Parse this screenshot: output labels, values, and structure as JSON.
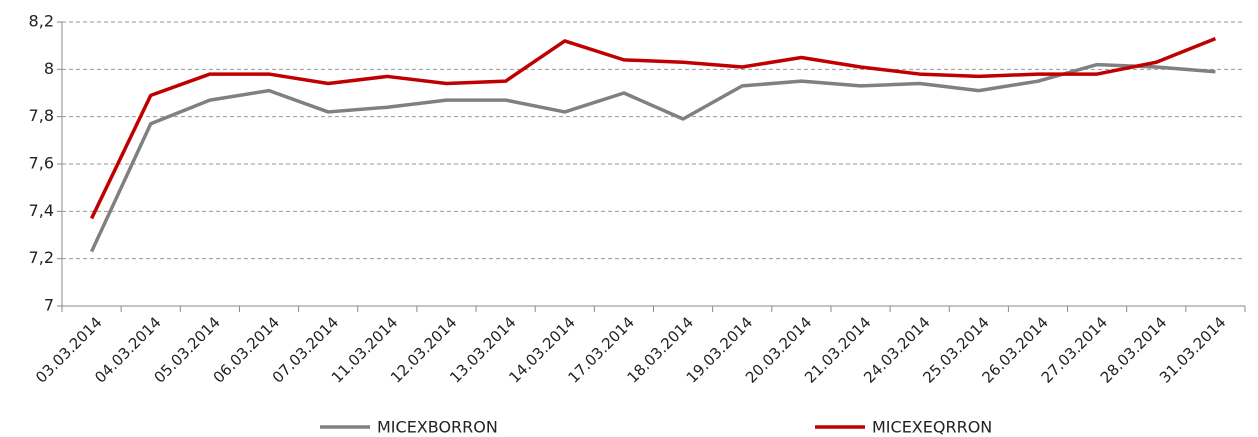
{
  "chart_data": {
    "type": "line",
    "categories": [
      "03.03.2014",
      "04.03.2014",
      "05.03.2014",
      "06.03.2014",
      "07.03.2014",
      "11.03.2014",
      "12.03.2014",
      "13.03.2014",
      "14.03.2014",
      "17.03.2014",
      "18.03.2014",
      "19.03.2014",
      "20.03.2014",
      "21.03.2014",
      "24.03.2014",
      "25.03.2014",
      "26.03.2014",
      "27.03.2014",
      "28.03.2014",
      "31.03.2014"
    ],
    "series": [
      {
        "name": "MICEXBORRON",
        "color": "#808080",
        "values": [
          7.23,
          7.77,
          7.87,
          7.91,
          7.82,
          7.84,
          7.87,
          7.87,
          7.82,
          7.9,
          7.79,
          7.93,
          7.95,
          7.93,
          7.94,
          7.91,
          7.95,
          8.02,
          8.01,
          7.99
        ]
      },
      {
        "name": "MICEXEQRRON",
        "color": "#c00000",
        "values": [
          7.37,
          7.89,
          7.98,
          7.98,
          7.94,
          7.97,
          7.94,
          7.95,
          8.12,
          8.04,
          8.03,
          8.01,
          8.05,
          8.01,
          7.98,
          7.97,
          7.98,
          7.98,
          8.03,
          8.13
        ]
      }
    ],
    "ylim": [
      7,
      8.2
    ],
    "yticks": [
      7,
      {
        "value": 7.2,
        "label": "7,2"
      },
      {
        "value": 7.4,
        "label": "7,4"
      },
      {
        "value": 7.6,
        "label": "7,6"
      },
      {
        "value": 7.8,
        "label": "7,8"
      },
      8,
      {
        "value": 8.2,
        "label": "8,2"
      }
    ],
    "grid": true,
    "legend": "bottom"
  }
}
